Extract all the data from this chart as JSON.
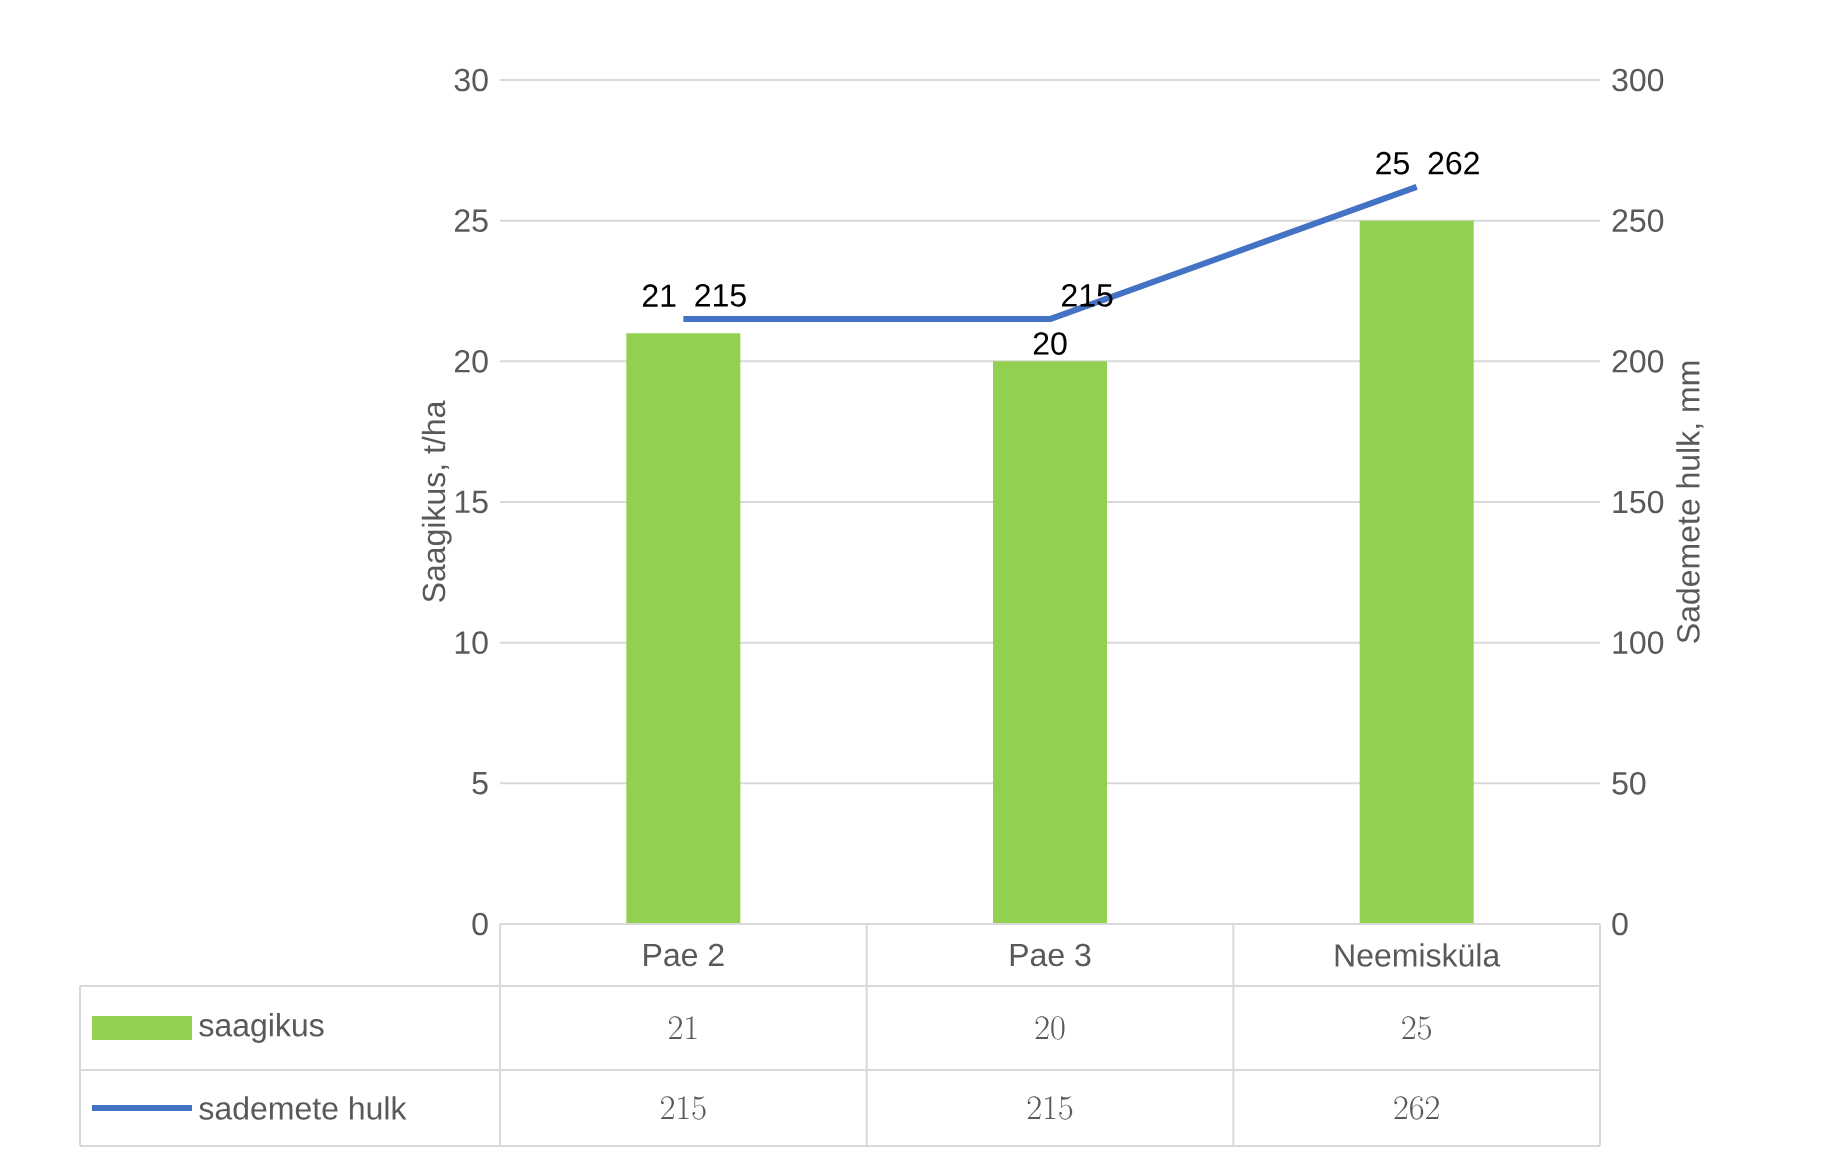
{
  "chart_data": {
    "type": "bar",
    "categories": [
      "Pae 2",
      "Pae 3",
      "Neemisküla"
    ],
    "series": [
      {
        "name": "saagikus",
        "type": "bar",
        "color": "#92d050",
        "values": [
          21,
          20,
          25
        ],
        "value_labels": [
          "21",
          "20",
          "25"
        ]
      },
      {
        "name": "sademete hulk",
        "type": "line",
        "axis": "y2",
        "color": "#4472c4",
        "values": [
          215,
          215,
          262
        ],
        "value_labels": [
          "215",
          "215",
          "262"
        ]
      }
    ],
    "ylabel": "Saagikus, t/ha",
    "y2label": "Sademete hulk, mm",
    "ylim": [
      0,
      30
    ],
    "yticks": [
      0,
      5,
      10,
      15,
      20,
      25,
      30
    ],
    "y2lim": [
      0,
      300
    ],
    "y2ticks": [
      0,
      50,
      100,
      150,
      200,
      250,
      300
    ],
    "grid": "y",
    "legend": "bottom",
    "data_labels": true
  }
}
